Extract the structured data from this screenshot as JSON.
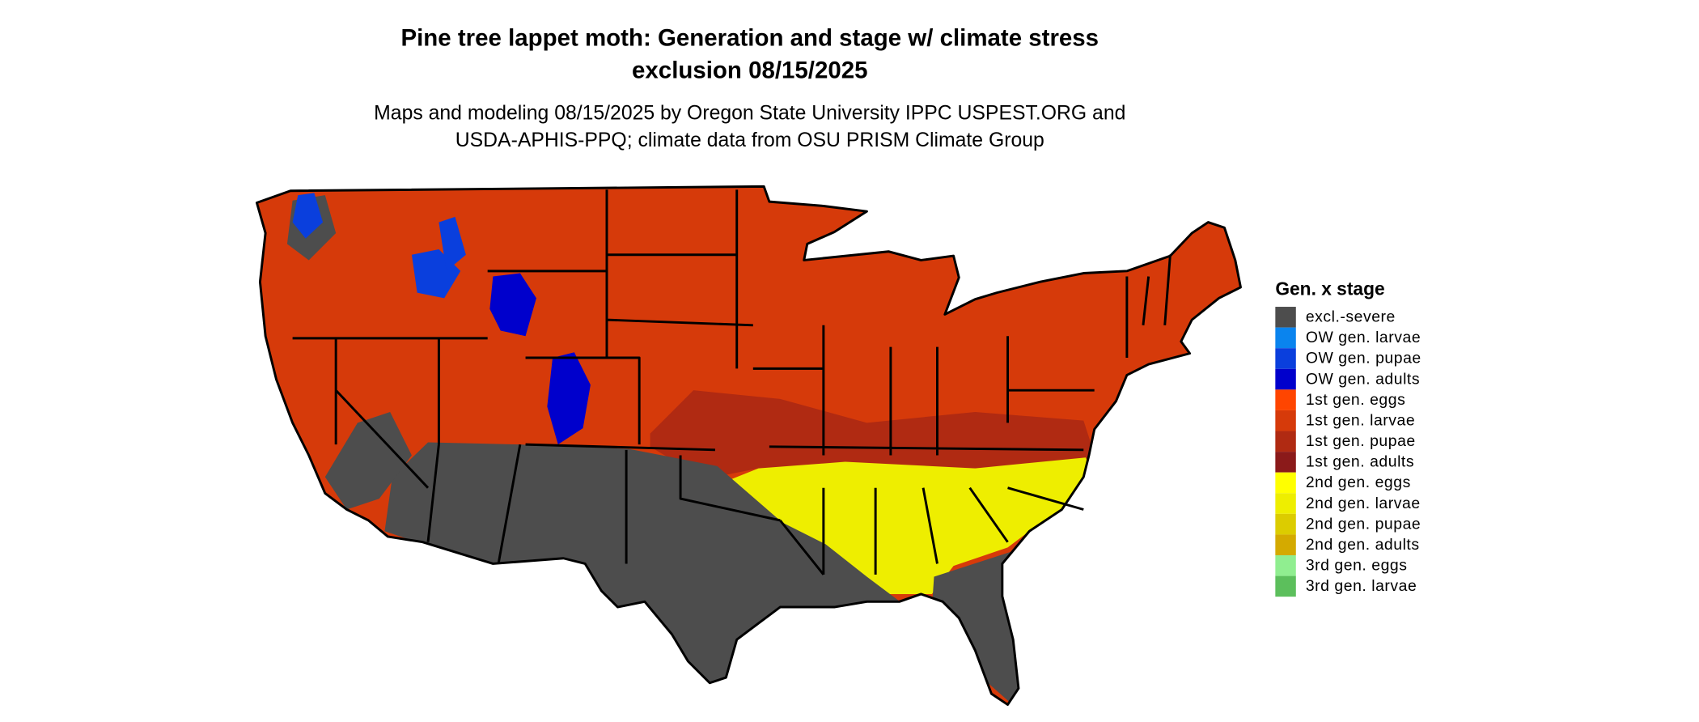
{
  "header": {
    "title_lines": [
      "Pine tree lappet moth: Generation and stage w/ climate stress",
      "exclusion 08/15/2025"
    ],
    "subtitle_lines": [
      "Maps and modeling 08/15/2025 by Oregon State University IPPC USPEST.ORG and",
      "USDA-APHIS-PPQ; climate data from OSU PRISM Climate Group"
    ]
  },
  "legend": {
    "title": "Gen. x stage",
    "items": [
      {
        "label": "excl.-severe",
        "color": "#4d4d4d"
      },
      {
        "label": "OW gen. larvae",
        "color": "#0a84ee"
      },
      {
        "label": "OW gen. pupae",
        "color": "#0a3fdd"
      },
      {
        "label": "OW gen. adults",
        "color": "#0000cc"
      },
      {
        "label": "1st gen. eggs",
        "color": "#ff4500"
      },
      {
        "label": "1st gen. larvae",
        "color": "#d63a0a"
      },
      {
        "label": "1st gen. pupae",
        "color": "#b02a12"
      },
      {
        "label": "1st gen. adults",
        "color": "#8b1a1a"
      },
      {
        "label": "2nd gen. eggs",
        "color": "#ffff00"
      },
      {
        "label": "2nd gen. larvae",
        "color": "#eeee00"
      },
      {
        "label": "2nd gen. pupae",
        "color": "#dccc00"
      },
      {
        "label": "2nd gen. adults",
        "color": "#d4aa00"
      },
      {
        "label": "3rd gen. eggs",
        "color": "#90ee90"
      },
      {
        "label": "3rd gen. larvae",
        "color": "#5cbf5c"
      }
    ]
  }
}
